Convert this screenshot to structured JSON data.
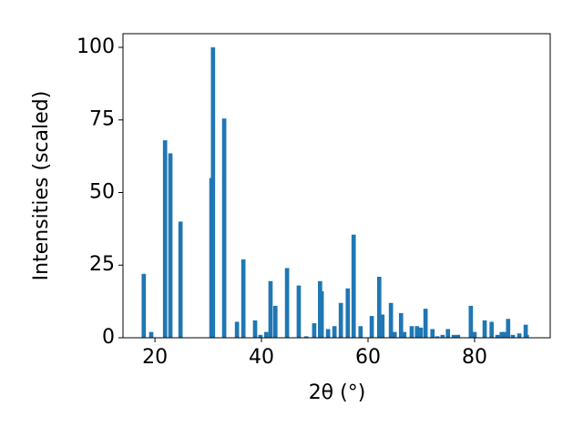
{
  "chart_data": {
    "type": "bar",
    "xlabel": "2θ (°)",
    "ylabel": "Intensities (scaled)",
    "x": [
      17.9,
      19.3,
      21.9,
      22.9,
      24.8,
      30.6,
      30.9,
      33.0,
      35.4,
      36.6,
      38.8,
      39.8,
      40.9,
      41.7,
      42.6,
      44.8,
      47.0,
      48.4,
      49.9,
      51.0,
      51.3,
      52.5,
      53.7,
      54.9,
      56.2,
      57.3,
      58.6,
      60.7,
      62.1,
      62.7,
      64.3,
      65.0,
      66.2,
      66.8,
      68.2,
      69.2,
      69.9,
      70.8,
      72.1,
      73.0,
      74.0,
      75.0,
      76.1,
      76.9,
      79.3,
      80.0,
      81.9,
      83.2,
      84.3,
      85.1,
      85.6,
      86.3,
      87.2,
      88.4,
      89.6,
      89.8
    ],
    "values": [
      22,
      2,
      68,
      63.5,
      40,
      55,
      100,
      75.5,
      5.5,
      27,
      6,
      1,
      2,
      19.5,
      11,
      24,
      18,
      0.5,
      5,
      19.5,
      16,
      3,
      4,
      12,
      17,
      35.5,
      4,
      7.5,
      21,
      8,
      12,
      2,
      8.5,
      2,
      4,
      4,
      3.5,
      10,
      3,
      0.5,
      1,
      3,
      1,
      1,
      11,
      2,
      6,
      5.5,
      1,
      2,
      2,
      6.5,
      1,
      1.5,
      4.5,
      1
    ],
    "color": "#1f77b4",
    "xlim": [
      14.0,
      94.2
    ],
    "ylim": [
      0,
      104.7
    ],
    "xticks": [
      20,
      40,
      60,
      80
    ],
    "yticks": [
      0,
      25,
      50,
      75,
      100
    ]
  }
}
